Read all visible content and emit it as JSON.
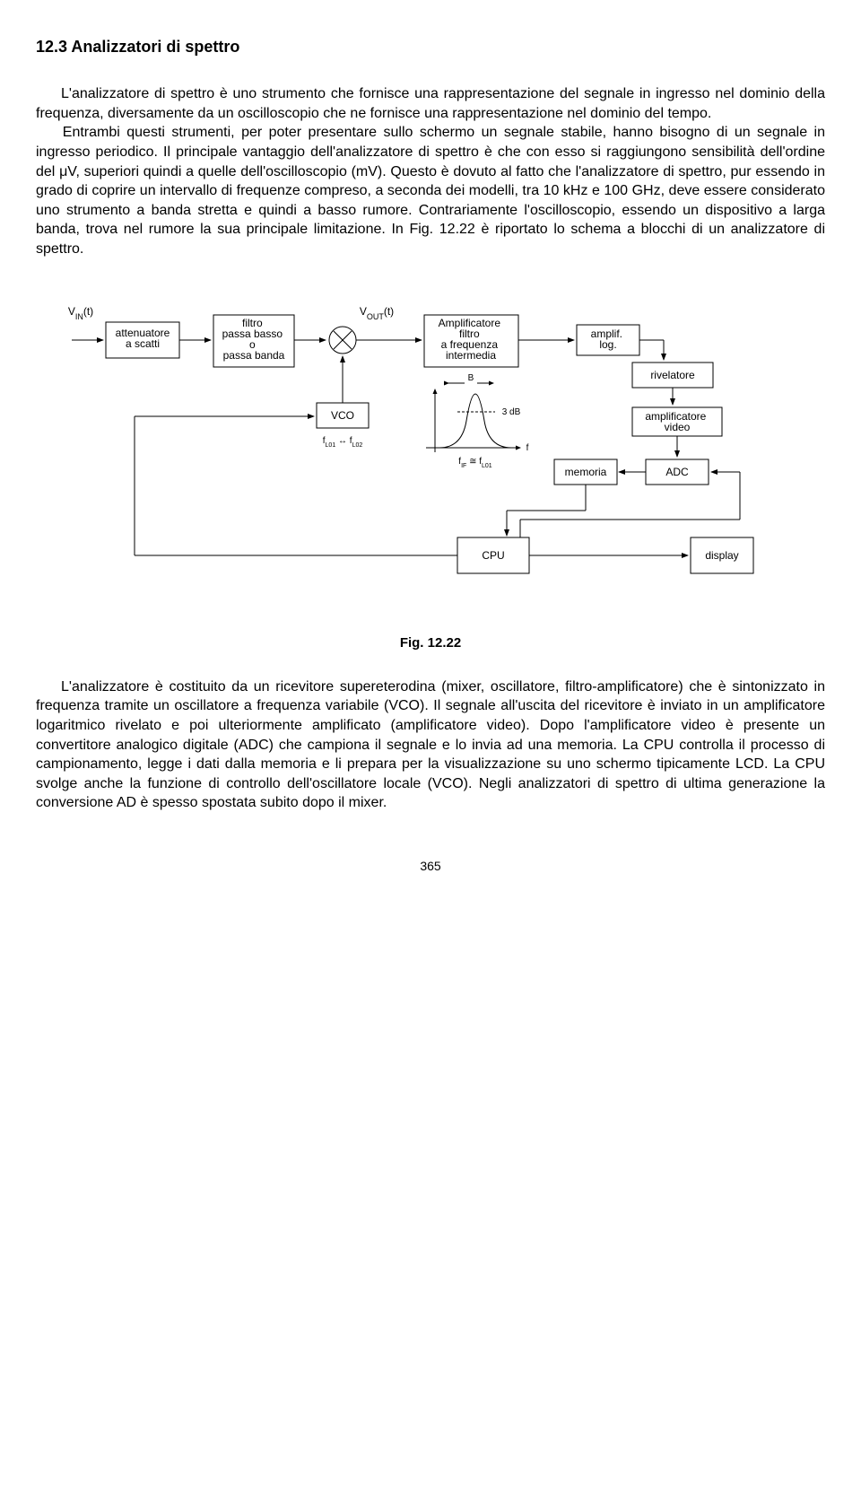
{
  "section_title": "12.3 Analizzatori di spettro",
  "paragraph_1": "L'analizzatore di spettro è uno strumento che fornisce una rappresentazione del segnale in ingresso nel dominio della frequenza, diversamente da un oscilloscopio che ne fornisce una rappresentazione nel dominio del tempo.\n    Entrambi questi strumenti, per poter presentare sullo schermo un segnale stabile, hanno bisogno di un segnale in ingresso periodico. Il principale vantaggio dell'analizzatore di spettro è che con esso si raggiungono sensibilità dell'ordine del μV, superiori quindi a quelle dell'oscilloscopio (mV). Questo è dovuto al fatto che l'analizzatore di spettro, pur essendo in grado di coprire un intervallo di frequenze compreso, a seconda dei modelli, tra 10 kHz e 100 GHz, deve essere considerato uno strumento a banda stretta e quindi a basso rumore. Contrariamente l'oscilloscopio, essendo un dispositivo a larga banda, trova nel rumore la sua principale limitazione. In Fig. 12.22 è riportato lo schema a blocchi di un analizzatore di spettro.",
  "diagram": {
    "input_label": "V_IN(t)",
    "output_label": "V_OUT(t)",
    "blocks": {
      "attenuator": "attenuatore\na scatti",
      "filter": "filtro\npassa basso\no\npassa banda",
      "if_amp": "Amplificatore\nfiltro\na frequenza\nintermedia",
      "log_amp": "amplif.\nlog.",
      "detector": "rivelatore",
      "video_amp": "amplificatore\nvideo",
      "adc": "ADC",
      "memory": "memoria",
      "display": "display",
      "cpu": "CPU",
      "vco": "VCO"
    },
    "annotations": {
      "bandwidth_B": "B",
      "three_db": "3 dB",
      "f_axis": "f",
      "if_eq": "f_IF ≅ f_L01",
      "vco_range": "f_L01 ↔ f_L02"
    },
    "style": {
      "stroke": "#000000",
      "fill": "#ffffff",
      "font_family": "Arial",
      "box_font_size": 12,
      "sub_font_size": 10
    }
  },
  "figure_caption": "Fig. 12.22",
  "paragraph_2": "L'analizzatore è costituito da un ricevitore supereterodina (mixer, oscillatore, filtro-amplificatore) che è sintonizzato in frequenza tramite un oscillatore a frequenza variabile (VCO). Il segnale all'uscita del ricevitore è inviato in un amplificatore logaritmico rivelato e poi ulteriormente amplificato (amplificatore video). Dopo l'amplificatore video è presente un convertitore analogico digitale (ADC) che campiona il segnale e lo invia ad una memoria. La CPU controlla il processo di campionamento, legge i dati dalla memoria e li prepara per la visualizzazione su uno schermo tipicamente LCD. La CPU svolge anche la funzione di controllo dell'oscillatore locale (VCO). Negli analizzatori di spettro di ultima generazione la conversione AD è spesso spostata subito dopo il mixer.",
  "page_number": "365"
}
